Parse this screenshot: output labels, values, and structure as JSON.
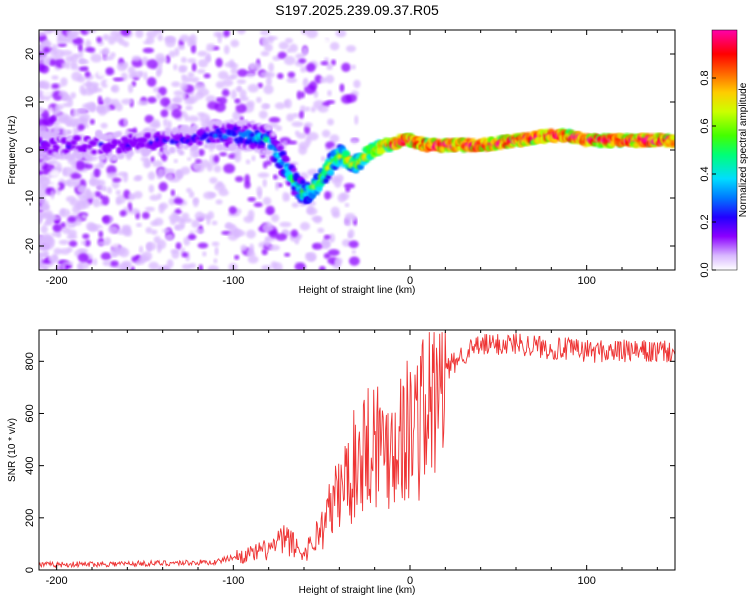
{
  "title": "S197.2025.239.09.37.R05",
  "colors": {
    "snr_line": "#ee3333",
    "colormap": [
      "#ffffff",
      "#d9b8ff",
      "#8b00ff",
      "#2200ff",
      "#0077ff",
      "#00ddff",
      "#00ff77",
      "#44ff00",
      "#ccff00",
      "#ffcc00",
      "#ff6600",
      "#ff0000",
      "#ff00aa"
    ]
  },
  "chart_data": [
    {
      "type": "heatmap",
      "name": "spectrogram",
      "xlabel": "Height of straight line (km)",
      "ylabel": "Frequency (Hz)",
      "xlim": [
        -210,
        150
      ],
      "ylim": [
        -25,
        25
      ],
      "xticks": [
        -200,
        -100,
        0,
        100
      ],
      "yticks": [
        20,
        10,
        0,
        -10,
        -20
      ],
      "colorbar": {
        "label": "Normalized spectral amplitude",
        "range": [
          0,
          1
        ],
        "ticks": [
          "0.0",
          "0.2",
          "0.4",
          "0.6",
          "0.8"
        ]
      },
      "ridge": {
        "x": [
          -210,
          -170,
          -130,
          -110,
          -100,
          -90,
          -80,
          -75,
          -70,
          -65,
          -60,
          -55,
          -50,
          -45,
          -40,
          -35,
          -30,
          -25,
          -20,
          -15,
          -10,
          -5,
          0,
          10,
          20,
          40,
          60,
          80,
          90,
          100,
          120,
          150
        ],
        "y": [
          1,
          1,
          2,
          3,
          3,
          3,
          2,
          -1,
          -4,
          -7,
          -9,
          -8,
          -6,
          -3,
          -1,
          -2,
          -3,
          -1,
          0,
          1,
          1,
          2,
          2,
          1,
          1,
          1,
          2,
          3,
          3,
          2,
          2,
          2
        ]
      }
    },
    {
      "type": "line",
      "name": "snr",
      "xlabel": "Height of straight line (km)",
      "ylabel": "SNR (10 * v/v)",
      "xlim": [
        -210,
        150
      ],
      "ylim": [
        0,
        920
      ],
      "xticks": [
        -200,
        -100,
        0,
        100
      ],
      "yticks": [
        0,
        200,
        400,
        600,
        800
      ],
      "envelope": {
        "x": [
          -210,
          -150,
          -110,
          -100,
          -90,
          -80,
          -70,
          -60,
          -50,
          -40,
          -30,
          -25,
          -20,
          -15,
          -10,
          -5,
          0,
          5,
          10,
          15,
          20,
          30,
          40,
          60,
          80,
          100,
          150
        ],
        "y": [
          20,
          25,
          30,
          50,
          60,
          80,
          120,
          60,
          160,
          300,
          420,
          480,
          520,
          460,
          500,
          520,
          540,
          580,
          620,
          650,
          760,
          830,
          860,
          870,
          850,
          840,
          835
        ]
      }
    }
  ]
}
